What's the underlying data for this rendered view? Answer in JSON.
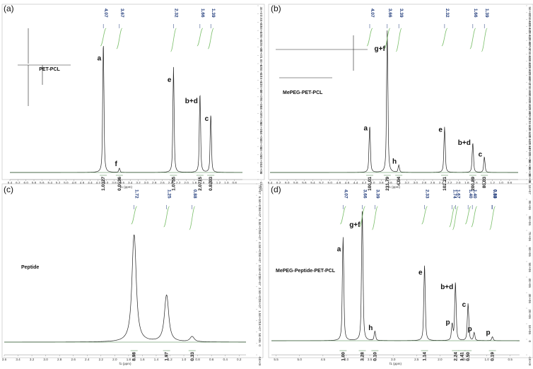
{
  "chart_data": [
    {
      "type": "line",
      "panel": "(a)",
      "sample_label": "PET-PCL",
      "xlabel": "f1 (ppm)",
      "xlim": [
        6.4,
        0.6
      ],
      "x_ticks": [
        "6.4",
        "6.2",
        "6.0",
        "5.8",
        "5.6",
        "5.4",
        "5.2",
        "5.0",
        "4.8",
        "4.6",
        "4.4",
        "4.2",
        "4.0",
        "3.8",
        "3.6",
        "3.4",
        "3.2",
        "3.0",
        "2.8",
        "2.6",
        "2.4",
        "2.2",
        "2.0",
        "1.8",
        "1.6",
        "1.4",
        "1.2",
        "1.0",
        "0.8"
      ],
      "y_ticks": [
        "3E+07",
        "2.8E+07",
        "2.6E+07",
        "2.4E+07",
        "2.2E+07",
        "2E+07",
        "1.8E+07",
        "1.6E+07",
        "1.4E+07",
        "1.2E+07",
        "1E+07",
        "9E+06",
        "8E+06",
        "7E+06",
        "6E+06",
        "5E+06",
        "4E+06",
        "3E+06",
        "2E+06",
        "1E+06",
        "0",
        "-1E+07"
      ],
      "peak_ppm_labels": [
        "4.07",
        "3.67",
        "2.32",
        "1.66",
        "1.39"
      ],
      "peaks": [
        {
          "ppm": 4.07,
          "height": 0.92,
          "label": "a"
        },
        {
          "ppm": 3.67,
          "height": 0.03,
          "label": "f"
        },
        {
          "ppm": 2.32,
          "height": 0.74,
          "label": "e"
        },
        {
          "ppm": 1.66,
          "height": 0.56,
          "label": "b+d"
        },
        {
          "ppm": 1.39,
          "height": 0.41,
          "label": "c"
        }
      ],
      "integrations": [
        {
          "ppm": 4.07,
          "value": "1.0327"
        },
        {
          "ppm": 3.67,
          "value": "0.0536"
        },
        {
          "ppm": 2.32,
          "value": "1.0755"
        },
        {
          "ppm": 1.66,
          "value": "2.0715"
        },
        {
          "ppm": 1.39,
          "value": "0.8203"
        }
      ]
    },
    {
      "type": "line",
      "panel": "(b)",
      "sample_label": "MePEG-PET-PCL",
      "xlabel": "f1 (ppm)",
      "xlim": [
        6.4,
        0.6
      ],
      "x_ticks": [
        "6.4",
        "6.2",
        "6.0",
        "5.8",
        "5.6",
        "5.4",
        "5.2",
        "5.0",
        "4.8",
        "4.6",
        "4.4",
        "4.2",
        "4.0",
        "3.8",
        "3.6",
        "3.4",
        "3.2",
        "3.0",
        "2.8",
        "2.6",
        "2.4",
        "2.2",
        "2.0",
        "1.8",
        "1.6",
        "1.4",
        "1.2",
        "1.0",
        "0.8"
      ],
      "y_ticks": [
        "5E+07",
        "4.8E+07",
        "4.6E+07",
        "4.4E+07",
        "4.2E+07",
        "4E+07",
        "3.8E+07",
        "3.6E+07",
        "3.4E+07",
        "3.2E+07",
        "3E+07",
        "2.8E+07",
        "2.6E+07",
        "2.4E+07",
        "2.2E+07",
        "2E+07",
        "1.8E+07",
        "1.6E+07",
        "1.4E+07",
        "1.2E+07",
        "1E+07",
        "8E+06",
        "6E+06",
        "4E+06",
        "2E+06",
        "0"
      ],
      "peak_ppm_labels": [
        "4.07",
        "3.66",
        "3.39",
        "2.32",
        "1.66",
        "1.39"
      ],
      "peaks": [
        {
          "ppm": 4.07,
          "height": 0.33,
          "label": "a"
        },
        {
          "ppm": 3.66,
          "height": 1.0,
          "label": "g+f"
        },
        {
          "ppm": 3.39,
          "height": 0.05,
          "label": "h"
        },
        {
          "ppm": 2.32,
          "height": 0.32,
          "label": "e"
        },
        {
          "ppm": 1.66,
          "height": 0.21,
          "label": "b+d"
        },
        {
          "ppm": 1.39,
          "height": 0.11,
          "label": "c"
        }
      ],
      "integrations": [
        {
          "ppm": 4.07,
          "value": "100.01"
        },
        {
          "ppm": 3.66,
          "value": "231.79"
        },
        {
          "ppm": 3.39,
          "value": "4.04"
        },
        {
          "ppm": 2.32,
          "value": "102.21"
        },
        {
          "ppm": 1.66,
          "value": "200.89"
        },
        {
          "ppm": 1.39,
          "value": "80.03"
        }
      ]
    },
    {
      "type": "line",
      "panel": "(c)",
      "sample_label": "Peptide",
      "xlabel": "f1 (ppm)",
      "xlim": [
        3.6,
        0.1
      ],
      "x_ticks": [
        "3.6",
        "3.4",
        "3.2",
        "3.0",
        "2.8",
        "2.6",
        "2.4",
        "2.2",
        "2.0",
        "1.8",
        "1.6",
        "1.4",
        "1.2",
        "1.0",
        "0.8",
        "0.6",
        "0.4",
        "0.2"
      ],
      "y_ticks": [
        "7E+07",
        "6.5E+07",
        "6E+07",
        "5.5E+07",
        "5E+07",
        "4.5E+07",
        "4E+07",
        "3.5E+07",
        "3E+07",
        "2.5E+07",
        "2E+07",
        "1.5E+07",
        "1E+07",
        "5E+06",
        "0",
        "-5E+06"
      ],
      "peak_ppm_labels": [
        "1.72",
        "1.25",
        "0.88"
      ],
      "peaks": [
        {
          "ppm": 1.72,
          "height": 0.62,
          "label": ""
        },
        {
          "ppm": 1.25,
          "height": 0.27,
          "label": ""
        },
        {
          "ppm": 0.88,
          "height": 0.03,
          "label": ""
        }
      ],
      "integrations": [
        {
          "ppm": 1.72,
          "value": "8.98"
        },
        {
          "ppm": 1.25,
          "value": "1.97"
        },
        {
          "ppm": 0.88,
          "value": "0.33"
        }
      ]
    },
    {
      "type": "line",
      "panel": "(d)",
      "sample_label": "MePEG-Peptide-PET-PCL",
      "xlabel": "f1 (ppm)",
      "xlim": [
        5.6,
        0.3
      ],
      "x_ticks": [
        "5.5",
        "5.0",
        "4.5",
        "4.0",
        "3.5",
        "3.0",
        "2.5",
        "2.0",
        "1.5",
        "1.0",
        "0.5"
      ],
      "y_ticks": [
        "1E+07",
        "9E+06",
        "8E+06",
        "7E+06",
        "6E+06",
        "5E+06",
        "4E+06",
        "3E+06",
        "2E+06",
        "1E+06",
        "0",
        "-1E+06"
      ],
      "peak_ppm_labels": [
        "4.07",
        "3.66",
        "3.39",
        "2.33",
        "1.74",
        "1.67",
        "1.40",
        "1.40",
        "0.89",
        "0.88"
      ],
      "peaks": [
        {
          "ppm": 4.07,
          "height": 0.78,
          "label": "a"
        },
        {
          "ppm": 3.66,
          "height": 1.0,
          "label": "g+f"
        },
        {
          "ppm": 3.39,
          "height": 0.07,
          "label": "h"
        },
        {
          "ppm": 2.33,
          "height": 0.57,
          "label": "e"
        },
        {
          "ppm": 1.74,
          "height": 0.12,
          "label": "p"
        },
        {
          "ppm": 1.67,
          "height": 0.44,
          "label": "b+d"
        },
        {
          "ppm": 1.4,
          "height": 0.28,
          "label": "c"
        },
        {
          "ppm": 1.27,
          "height": 0.06,
          "label": "p"
        },
        {
          "ppm": 0.88,
          "height": 0.03,
          "label": "p"
        }
      ],
      "integrations": [
        {
          "ppm": 4.07,
          "value": "1.00"
        },
        {
          "ppm": 3.66,
          "value": "3.28"
        },
        {
          "ppm": 3.39,
          "value": "0.10"
        },
        {
          "ppm": 2.33,
          "value": "1.14"
        },
        {
          "ppm": 1.67,
          "value": "2.24"
        },
        {
          "ppm": 1.53,
          "value": "1.41"
        },
        {
          "ppm": 1.4,
          "value": "0.50"
        },
        {
          "ppm": 0.88,
          "value": "0.19"
        }
      ]
    }
  ]
}
